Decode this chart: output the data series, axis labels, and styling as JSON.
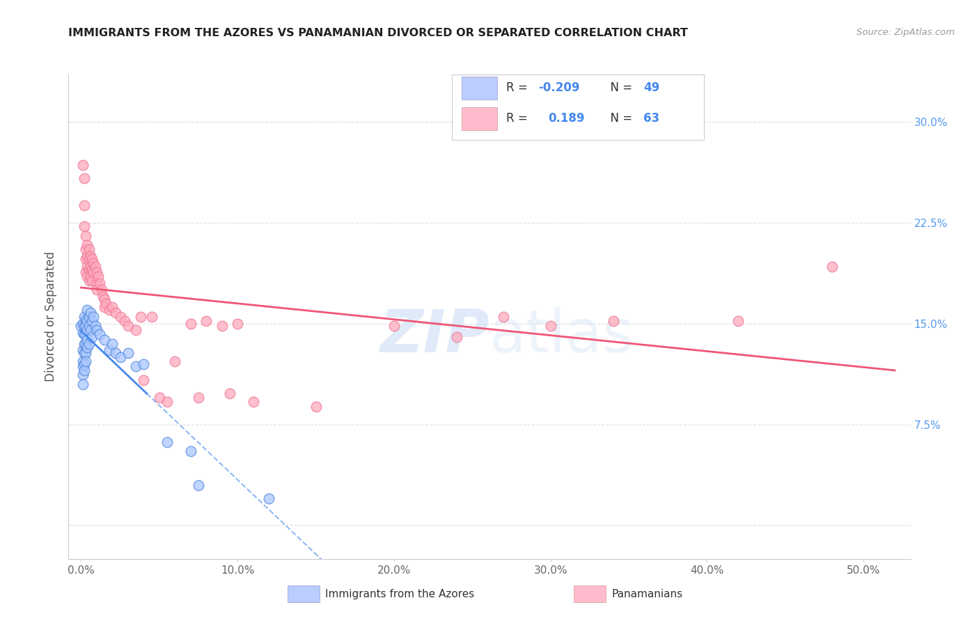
{
  "title": "IMMIGRANTS FROM THE AZORES VS PANAMANIAN DIVORCED OR SEPARATED CORRELATION CHART",
  "source": "Source: ZipAtlas.com",
  "ylabel": "Divorced or Separated",
  "x_tick_vals": [
    0.0,
    0.1,
    0.2,
    0.3,
    0.4,
    0.5
  ],
  "x_tick_labels": [
    "0.0%",
    "10.0%",
    "20.0%",
    "30.0%",
    "40.0%",
    "50.0%"
  ],
  "y_tick_vals": [
    0.0,
    0.075,
    0.15,
    0.225,
    0.3
  ],
  "y_tick_labels": [
    "",
    "7.5%",
    "15.0%",
    "22.5%",
    "30.0%"
  ],
  "xlim": [
    -0.008,
    0.53
  ],
  "ylim": [
    -0.025,
    0.335
  ],
  "legend_r_blue": "-0.209",
  "legend_n_blue": "49",
  "legend_r_pink": "0.189",
  "legend_n_pink": "63",
  "blue_scatter": [
    [
      0.0,
      0.148
    ],
    [
      0.001,
      0.15
    ],
    [
      0.001,
      0.143
    ],
    [
      0.001,
      0.13
    ],
    [
      0.001,
      0.122
    ],
    [
      0.001,
      0.118
    ],
    [
      0.001,
      0.112
    ],
    [
      0.001,
      0.105
    ],
    [
      0.002,
      0.155
    ],
    [
      0.002,
      0.148
    ],
    [
      0.002,
      0.142
    ],
    [
      0.002,
      0.135
    ],
    [
      0.002,
      0.128
    ],
    [
      0.002,
      0.12
    ],
    [
      0.002,
      0.115
    ],
    [
      0.003,
      0.153
    ],
    [
      0.003,
      0.148
    ],
    [
      0.003,
      0.142
    ],
    [
      0.003,
      0.135
    ],
    [
      0.003,
      0.128
    ],
    [
      0.003,
      0.122
    ],
    [
      0.004,
      0.16
    ],
    [
      0.004,
      0.152
    ],
    [
      0.004,
      0.145
    ],
    [
      0.004,
      0.138
    ],
    [
      0.004,
      0.132
    ],
    [
      0.005,
      0.155
    ],
    [
      0.005,
      0.148
    ],
    [
      0.005,
      0.135
    ],
    [
      0.006,
      0.158
    ],
    [
      0.006,
      0.145
    ],
    [
      0.007,
      0.152
    ],
    [
      0.007,
      0.14
    ],
    [
      0.008,
      0.155
    ],
    [
      0.009,
      0.148
    ],
    [
      0.01,
      0.145
    ],
    [
      0.012,
      0.142
    ],
    [
      0.015,
      0.138
    ],
    [
      0.018,
      0.13
    ],
    [
      0.02,
      0.135
    ],
    [
      0.022,
      0.128
    ],
    [
      0.025,
      0.125
    ],
    [
      0.03,
      0.128
    ],
    [
      0.035,
      0.118
    ],
    [
      0.04,
      0.12
    ],
    [
      0.055,
      0.062
    ],
    [
      0.07,
      0.055
    ],
    [
      0.075,
      0.03
    ],
    [
      0.12,
      0.02
    ]
  ],
  "pink_scatter": [
    [
      0.001,
      0.268
    ],
    [
      0.002,
      0.238
    ],
    [
      0.002,
      0.222
    ],
    [
      0.003,
      0.215
    ],
    [
      0.003,
      0.205
    ],
    [
      0.003,
      0.198
    ],
    [
      0.003,
      0.188
    ],
    [
      0.004,
      0.208
    ],
    [
      0.004,
      0.2
    ],
    [
      0.004,
      0.192
    ],
    [
      0.004,
      0.185
    ],
    [
      0.005,
      0.205
    ],
    [
      0.005,
      0.198
    ],
    [
      0.005,
      0.19
    ],
    [
      0.005,
      0.182
    ],
    [
      0.006,
      0.2
    ],
    [
      0.006,
      0.192
    ],
    [
      0.006,
      0.185
    ],
    [
      0.007,
      0.198
    ],
    [
      0.007,
      0.19
    ],
    [
      0.007,
      0.182
    ],
    [
      0.008,
      0.195
    ],
    [
      0.008,
      0.188
    ],
    [
      0.009,
      0.192
    ],
    [
      0.01,
      0.188
    ],
    [
      0.01,
      0.18
    ],
    [
      0.01,
      0.175
    ],
    [
      0.011,
      0.185
    ],
    [
      0.012,
      0.18
    ],
    [
      0.013,
      0.175
    ],
    [
      0.014,
      0.17
    ],
    [
      0.015,
      0.168
    ],
    [
      0.015,
      0.162
    ],
    [
      0.016,
      0.165
    ],
    [
      0.018,
      0.16
    ],
    [
      0.02,
      0.162
    ],
    [
      0.022,
      0.158
    ],
    [
      0.025,
      0.155
    ],
    [
      0.028,
      0.152
    ],
    [
      0.03,
      0.148
    ],
    [
      0.035,
      0.145
    ],
    [
      0.038,
      0.155
    ],
    [
      0.04,
      0.108
    ],
    [
      0.045,
      0.155
    ],
    [
      0.05,
      0.095
    ],
    [
      0.055,
      0.092
    ],
    [
      0.06,
      0.122
    ],
    [
      0.07,
      0.15
    ],
    [
      0.075,
      0.095
    ],
    [
      0.08,
      0.152
    ],
    [
      0.09,
      0.148
    ],
    [
      0.095,
      0.098
    ],
    [
      0.1,
      0.15
    ],
    [
      0.11,
      0.092
    ],
    [
      0.15,
      0.088
    ],
    [
      0.2,
      0.148
    ],
    [
      0.24,
      0.14
    ],
    [
      0.27,
      0.155
    ],
    [
      0.3,
      0.148
    ],
    [
      0.34,
      0.152
    ],
    [
      0.42,
      0.152
    ],
    [
      0.48,
      0.192
    ],
    [
      0.002,
      0.258
    ]
  ],
  "blue_color": "#aac8ff",
  "pink_color": "#ffaabb",
  "blue_edge_color": "#5588dd",
  "pink_edge_color": "#ee7799",
  "blue_line_color": "#4488ee",
  "pink_line_color": "#ee5577",
  "watermark_color": "#ccddf5",
  "grid_color": "#dddddd",
  "title_color": "#222222",
  "ylabel_color": "#555555",
  "right_tick_color": "#5599ee",
  "legend_fill_blue": "#bbccff",
  "legend_fill_pink": "#ffbbcc",
  "legend_num_color": "#4488ee",
  "legend_text_color": "#333333"
}
